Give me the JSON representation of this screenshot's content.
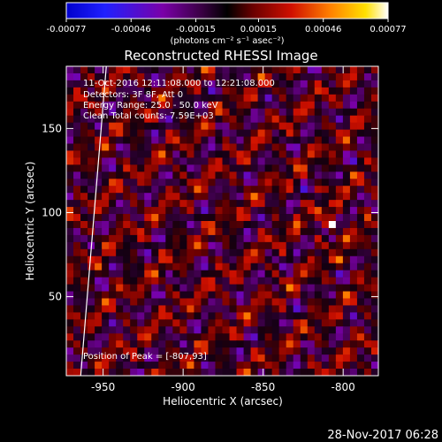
{
  "chart_data": {
    "type": "heatmap",
    "title": "Reconstructed RHESSI Image",
    "xlabel": "Heliocentric X (arcsec)",
    "ylabel": "Heliocentric Y (arcsec)",
    "xlim": [
      -973,
      -778
    ],
    "ylim": [
      3,
      187
    ],
    "x_ticks": [
      "-950",
      "-900",
      "-850",
      "-800"
    ],
    "x_tick_values": [
      -950,
      -900,
      -850,
      -800
    ],
    "y_ticks": [
      "50",
      "100",
      "150"
    ],
    "y_tick_values": [
      50,
      100,
      150
    ],
    "colorbar": {
      "range": [
        -0.00077,
        0.00077
      ],
      "tick_labels": [
        "-0.00077",
        "-0.00046",
        "-0.00015",
        "0.00015",
        "0.00046",
        "0.00077"
      ],
      "tick_values": [
        -0.00077,
        -0.00046,
        -0.00015,
        0.00015,
        0.00046,
        0.00077
      ],
      "units": "(photons cm⁻² s⁻¹ asec⁻²)",
      "colormap": [
        "#000000",
        "#0000ff",
        "#6a00a8",
        "#3c0046",
        "#c00000",
        "#ff7000",
        "#ffe000",
        "#ffffff"
      ]
    },
    "annotations": [
      "11-Oct-2016 12:11:08.000 to 12:21:08.000",
      "Detectors: 3F 8F, Att 0",
      "Energy Range: 25.0 - 50.0 keV",
      "Clean     Total counts: 7.59E+03"
    ],
    "peak_label": "Position of Peak = [-807,93]",
    "peak": [
      -807,
      93
    ],
    "limb_x_at_ymin": -964,
    "limb_x_at_ymax": -948,
    "footer": "28-Nov-2017 06:28"
  }
}
